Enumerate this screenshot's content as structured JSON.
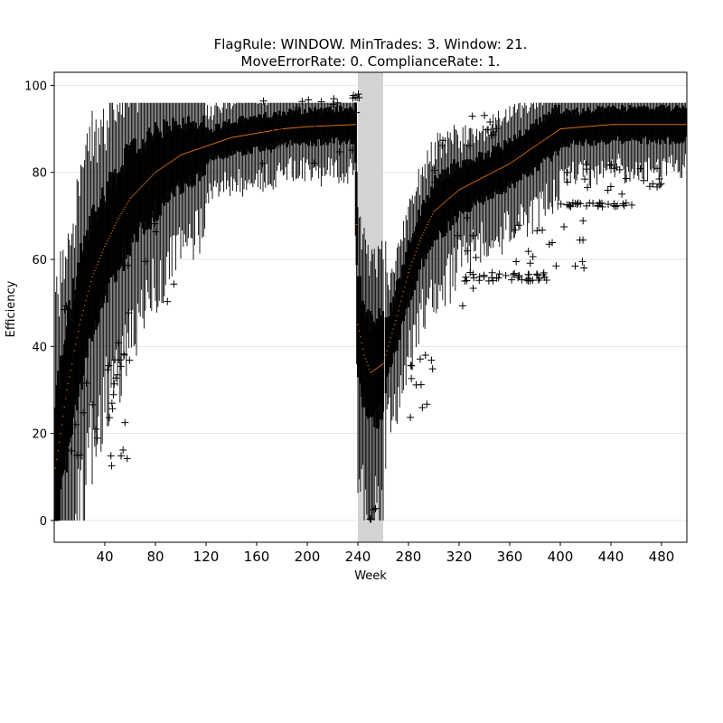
{
  "chart_data": {
    "type": "box",
    "title_line1": "FlagRule: WINDOW. MinTrades: 3. Window: 21.",
    "title_line2": "MoveErrorRate: 0. ComplianceRate: 1.",
    "xlabel": "Week",
    "ylabel": "Efficiency",
    "xlim": [
      0,
      500
    ],
    "ylim": [
      -5,
      103
    ],
    "x_ticks": [
      40,
      80,
      120,
      160,
      200,
      240,
      280,
      320,
      360,
      400,
      440,
      480
    ],
    "x_tick_labels": [
      "40",
      "80",
      "120",
      "160",
      "200",
      "240",
      "280",
      "320",
      "360",
      "400",
      "440",
      "480"
    ],
    "y_ticks": [
      0,
      20,
      40,
      60,
      80,
      100
    ],
    "y_tick_labels": [
      "0",
      "20",
      "40",
      "60",
      "80",
      "100"
    ],
    "grid": "horizontal",
    "shaded_region": {
      "x_start": 240,
      "x_end": 260,
      "color": "#d3d3d3"
    },
    "colors": {
      "box": "#000000",
      "median": "#ff7f0e",
      "shade": "#d3d3d3",
      "grid": "#e6e6e6"
    },
    "median_profile": [
      [
        1,
        12
      ],
      [
        10,
        30
      ],
      [
        20,
        45
      ],
      [
        30,
        56
      ],
      [
        40,
        63
      ],
      [
        50,
        69
      ],
      [
        60,
        74
      ],
      [
        70,
        77
      ],
      [
        80,
        80
      ],
      [
        100,
        84
      ],
      [
        120,
        86
      ],
      [
        140,
        88
      ],
      [
        160,
        89
      ],
      [
        180,
        90
      ],
      [
        200,
        90.5
      ],
      [
        238,
        91
      ],
      [
        240,
        45
      ],
      [
        245,
        38
      ],
      [
        250,
        34
      ],
      [
        255,
        35
      ],
      [
        260,
        36
      ],
      [
        270,
        46
      ],
      [
        280,
        57
      ],
      [
        290,
        65
      ],
      [
        300,
        71
      ],
      [
        320,
        76
      ],
      [
        340,
        79
      ],
      [
        360,
        82
      ],
      [
        380,
        86
      ],
      [
        400,
        90
      ],
      [
        440,
        91
      ],
      [
        480,
        91
      ],
      [
        499,
        91
      ]
    ],
    "outlier_groups": [
      {
        "x_range": [
          3,
          60
        ],
        "y_range": [
          11,
          55
        ],
        "count": 28
      },
      {
        "x_range": [
          40,
          60
        ],
        "y_range": [
          22,
          41
        ],
        "count": 12
      },
      {
        "x_range": [
          55,
          120
        ],
        "y_range": [
          50,
          74
        ],
        "count": 10
      },
      {
        "x_range": [
          160,
          240
        ],
        "y_range": [
          82,
          97
        ],
        "count": 30
      },
      {
        "x_range": [
          236,
          242
        ],
        "y_range": [
          97,
          98
        ],
        "count": 6
      },
      {
        "x_range": [
          248,
          255
        ],
        "y_range": [
          0,
          3
        ],
        "count": 4
      },
      {
        "x_range": [
          280,
          300
        ],
        "y_range": [
          20,
          38
        ],
        "count": 12
      },
      {
        "x_range": [
          300,
          335
        ],
        "y_range": [
          47,
          89
        ],
        "count": 14
      },
      {
        "x_range": [
          320,
          390
        ],
        "y_range": [
          55,
          57
        ],
        "count": 40
      },
      {
        "x_range": [
          360,
          420
        ],
        "y_range": [
          58,
          69
        ],
        "count": 18
      },
      {
        "x_range": [
          400,
          460
        ],
        "y_range": [
          72,
          73
        ],
        "count": 28
      },
      {
        "x_range": [
          400,
          480
        ],
        "y_range": [
          75,
          82
        ],
        "count": 24
      },
      {
        "x_range": [
          330,
          350
        ],
        "y_range": [
          86,
          94
        ],
        "count": 8
      }
    ]
  }
}
